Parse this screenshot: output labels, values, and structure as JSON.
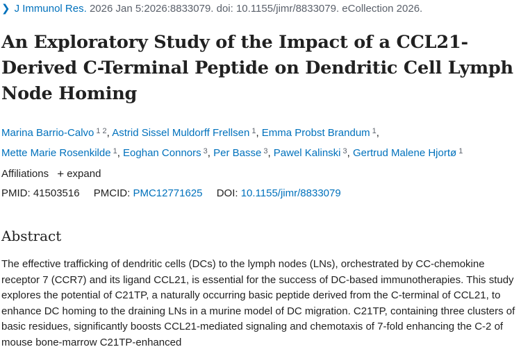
{
  "citation": {
    "chevron_icon": "chevron-right-icon",
    "journal": "J Immunol Res.",
    "details": " 2026 Jan 5:2026:8833079. doi: 10.1155/jimr/8833079. eCollection 2026."
  },
  "title": "An Exploratory Study of the Impact of a CCL21-Derived C-Terminal Peptide on Dendritic Cell Lymph Node Homing",
  "authors": [
    {
      "name": "Marina Barrio-Calvo",
      "affs": "1 2"
    },
    {
      "name": "Astrid Sissel Muldorff Frellsen",
      "affs": "1"
    },
    {
      "name": "Emma Probst Brandum",
      "affs": "1"
    },
    {
      "name": "Mette Marie Rosenkilde",
      "affs": "1"
    },
    {
      "name": "Eoghan Connors",
      "affs": "3"
    },
    {
      "name": "Per Basse",
      "affs": "3"
    },
    {
      "name": "Pawel Kalinski",
      "affs": "3"
    },
    {
      "name": "Gertrud Malene Hjortø",
      "affs": "1"
    }
  ],
  "affiliations": {
    "label": "Affiliations",
    "expand_label": "expand"
  },
  "ids": {
    "pmid_label": "PMID:",
    "pmid": "41503516",
    "pmcid_label": "PMCID:",
    "pmcid": "PMC12771625",
    "doi_label": "DOI:",
    "doi": "10.1155/jimr/8833079"
  },
  "abstract": {
    "heading": "Abstract",
    "text": "The effective trafficking of dendritic cells (DCs) to the lymph nodes (LNs), orchestrated by CC-chemokine receptor 7 (CCR7) and its ligand CCL21, is essential for the success of DC-based immunotherapies. This study explores the potential of C21TP, a naturally occurring basic peptide derived from the C-terminal of CCL21, to enhance DC homing to the draining LNs in a murine model of DC migration. C21TP, containing three clusters of basic residues, significantly boosts CCL21-mediated signaling and chemotaxis of 7-fold enhancing the C-2 of mouse bone-marrow C21TP-enhanced"
  },
  "colors": {
    "link": "#0071bc",
    "text": "#212121",
    "muted": "#5b616b"
  }
}
